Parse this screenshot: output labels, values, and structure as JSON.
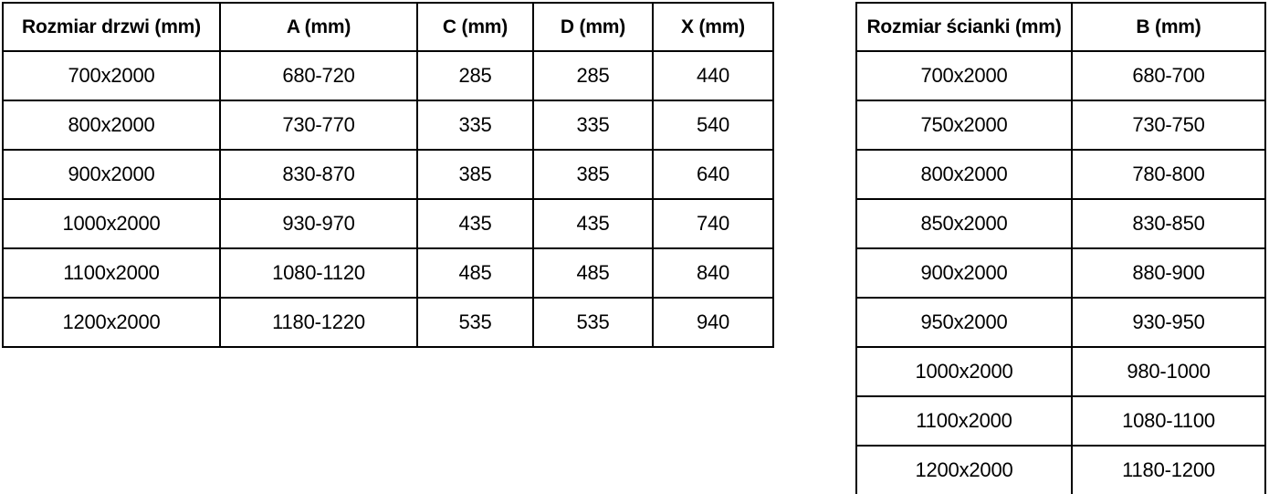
{
  "styles": {
    "background": "#ffffff",
    "border_color": "#000000",
    "text_color": "#000000"
  },
  "tables": [
    {
      "title": "door-dimensions",
      "headers": [
        "Rozmiar drzwi (mm)",
        "A (mm)",
        "C (mm)",
        "D (mm)",
        "X (mm)"
      ],
      "rows": [
        [
          "700x2000",
          "680-720",
          "285",
          "285",
          "440"
        ],
        [
          "800x2000",
          "730-770",
          "335",
          "335",
          "540"
        ],
        [
          "900x2000",
          "830-870",
          "385",
          "385",
          "640"
        ],
        [
          "1000x2000",
          "930-970",
          "435",
          "435",
          "740"
        ],
        [
          "1100x2000",
          "1080-1120",
          "485",
          "485",
          "840"
        ],
        [
          "1200x2000",
          "1180-1220",
          "535",
          "535",
          "940"
        ]
      ]
    },
    {
      "title": "wall-panel-dimensions",
      "headers": [
        "Rozmiar ścianki (mm)",
        "B (mm)"
      ],
      "rows": [
        [
          "700x2000",
          "680-700"
        ],
        [
          "750x2000",
          "730-750"
        ],
        [
          "800x2000",
          "780-800"
        ],
        [
          "850x2000",
          "830-850"
        ],
        [
          "900x2000",
          "880-900"
        ],
        [
          "950x2000",
          "930-950"
        ],
        [
          "1000x2000",
          "980-1000"
        ],
        [
          "1100x2000",
          "1080-1100"
        ],
        [
          "1200x2000",
          "1180-1200"
        ]
      ]
    }
  ]
}
